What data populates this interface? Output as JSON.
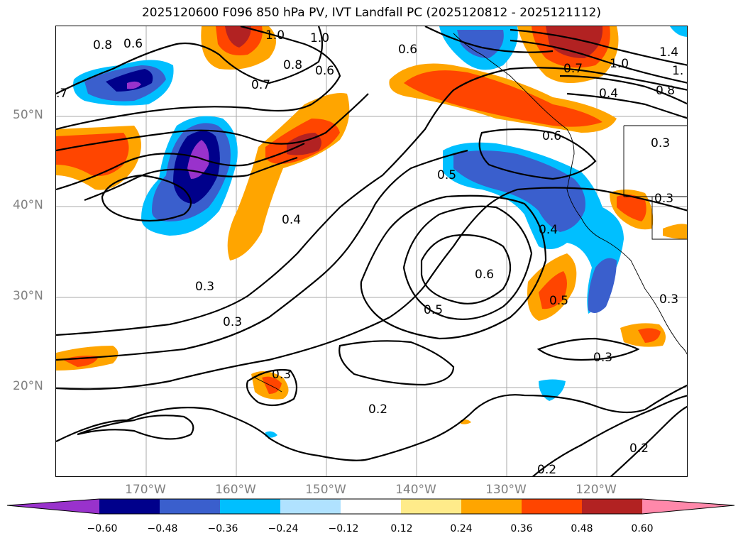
{
  "title": "2025120600 F096 850 hPa PV, IVT Landfall PC (2025120812 - 2025121112)",
  "lat_labels": [
    "50°N",
    "40°N",
    "30°N",
    "20°N"
  ],
  "lon_labels": [
    "170°W",
    "160°W",
    "150°W",
    "140°W",
    "130°W",
    "120°W"
  ],
  "contour_labels": [
    "0.8",
    "0.6",
    ".7",
    "1.0",
    "0.8",
    "0.6",
    "0.7",
    "1.0",
    "0.6",
    "0.7",
    "1.0",
    "1.4",
    "1.",
    "0.8",
    "0.4",
    "0.6",
    "0.5",
    "0.3",
    "0.3",
    "0.4",
    "0.3",
    "0.3",
    "0.4",
    "0.6",
    "0.5",
    "0.5",
    "0.3",
    "0.3",
    "0.3",
    "0.2",
    "0.2",
    "0.2"
  ],
  "colorbar": {
    "ticks": [
      "−0.60",
      "−0.48",
      "−0.36",
      "−0.24",
      "−0.12",
      "0.12",
      "0.24",
      "0.36",
      "0.48",
      "0.60"
    ],
    "colors": [
      "#9932cc",
      "#00008b",
      "#3a5fcd",
      "#00bfff",
      "#b0e2ff",
      "#ffffff",
      "#ffeb8a",
      "#ffa500",
      "#ff4500",
      "#b22222",
      "#ff88aa"
    ]
  }
}
